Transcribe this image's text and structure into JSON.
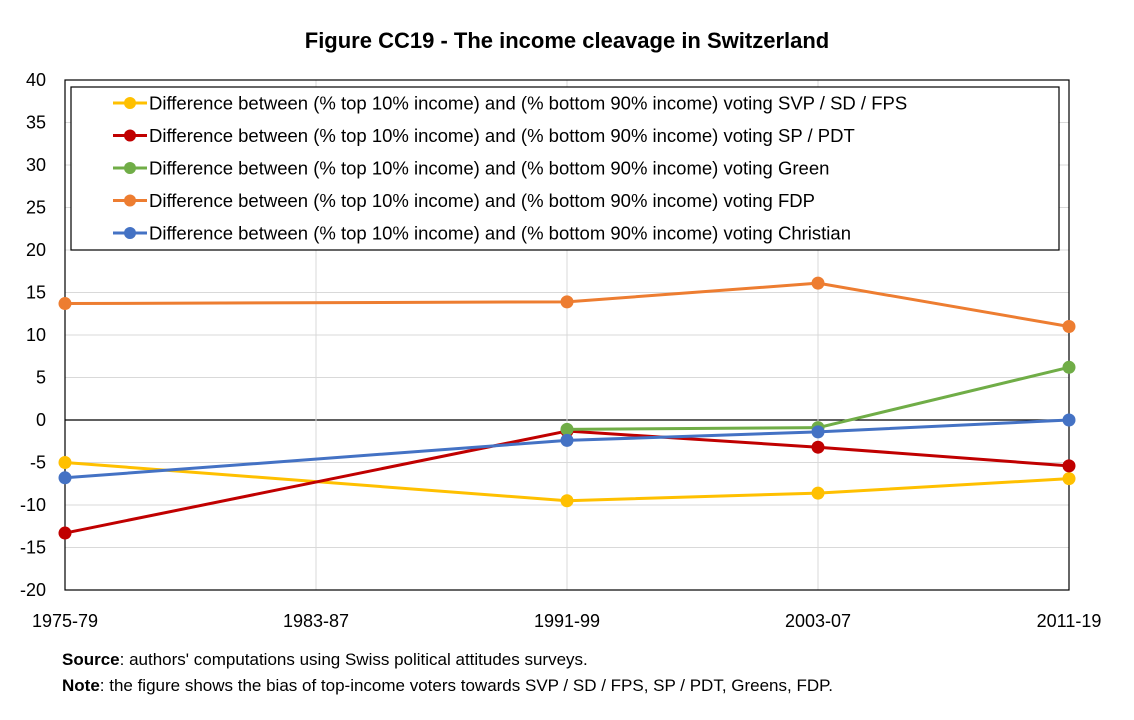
{
  "chart_data": {
    "type": "line",
    "title": "Figure CC19 - The income cleavage in Switzerland",
    "xlabel": "",
    "ylabel": "",
    "categories": [
      "1975-79",
      "1983-87",
      "1991-99",
      "2003-07",
      "2011-19"
    ],
    "ylim": [
      -20,
      40
    ],
    "yticks": [
      -20,
      -15,
      -10,
      -5,
      0,
      5,
      10,
      15,
      20,
      25,
      30,
      35,
      40
    ],
    "grid": true,
    "legend_position": "top",
    "series": [
      {
        "name": "Difference between (% top 10% income) and (% bottom 90% income) voting SVP / SD / FPS",
        "color": "#FFC000",
        "values": [
          -5.0,
          null,
          -9.5,
          -8.6,
          -6.9
        ]
      },
      {
        "name": "Difference between (% top 10% income) and (% bottom 90% income) voting SP / PDT",
        "color": "#C00000",
        "values": [
          -13.3,
          null,
          -1.3,
          -3.2,
          -5.4
        ]
      },
      {
        "name": "Difference between (% top 10% income) and (% bottom 90% income) voting Green",
        "color": "#70AD47",
        "values": [
          null,
          null,
          -1.1,
          -0.9,
          6.2
        ]
      },
      {
        "name": "Difference between (% top 10% income) and (% bottom 90% income) voting FDP",
        "color": "#ED7D31",
        "values": [
          13.7,
          null,
          13.9,
          16.1,
          11.0
        ]
      },
      {
        "name": "Difference between (% top 10% income) and (% bottom 90% income) voting Christian",
        "color": "#4472C4",
        "values": [
          -6.8,
          null,
          -2.4,
          -1.4,
          0.0
        ]
      }
    ]
  },
  "notes": {
    "source_label": "Source",
    "source_text": ": authors' computations using Swiss political attitudes surveys.",
    "note_label": "Note",
    "note_text": ": the figure shows the bias of top-income voters towards SVP / SD / FPS, SP / PDT, Greens, FDP."
  }
}
